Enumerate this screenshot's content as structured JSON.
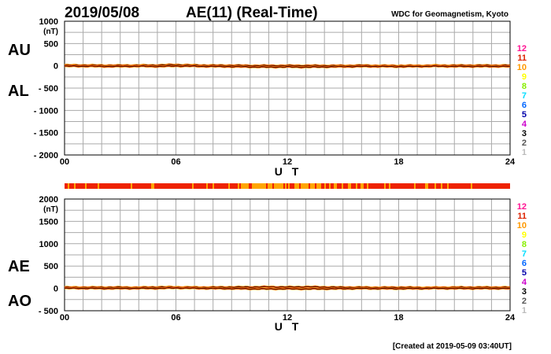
{
  "header": {
    "date": "2019/05/08",
    "title": "AE(11) (Real-Time)",
    "organization": "WDC for Geomagnetism, Kyoto"
  },
  "footer": {
    "created": "[Created at 2019-05-09 03:40UT]"
  },
  "station_legend": {
    "labels": [
      "12",
      "11",
      "10",
      "9",
      "8",
      "7",
      "6",
      "5",
      "4",
      "3",
      "2",
      "1"
    ],
    "colors": [
      "#ff1493",
      "#dd2200",
      "#ff9900",
      "#ffff00",
      "#88ee00",
      "#00ddff",
      "#0066ff",
      "#0000aa",
      "#cc00cc",
      "#000000",
      "#555555",
      "#bbbbbb"
    ]
  },
  "status_bar_colors": {
    "primary": "#ee2200",
    "secondary": "#ffa500"
  },
  "chart_data": [
    {
      "type": "line",
      "panel": "AU/AL",
      "panel_labels": [
        "AU",
        "AL"
      ],
      "unit": "(nT)",
      "xlabel": "U T",
      "xlim": [
        0,
        24
      ],
      "xticks": [
        "00",
        "06",
        "12",
        "18",
        "24"
      ],
      "ylim": [
        -2000,
        1000
      ],
      "yticks": [
        "1000",
        "500",
        "0",
        "- 500",
        "- 1000",
        "- 1500",
        "- 2000"
      ],
      "grid": true,
      "series": [
        {
          "name": "AU",
          "color": "#dd2200",
          "x": [
            0,
            1,
            2,
            3,
            4,
            5,
            6,
            7,
            8,
            9,
            10,
            11,
            12,
            13,
            14,
            15,
            16,
            17,
            18,
            19,
            20,
            21,
            22,
            23,
            24
          ],
          "values": [
            15,
            15,
            10,
            10,
            12,
            15,
            25,
            15,
            10,
            10,
            5,
            5,
            5,
            5,
            5,
            5,
            10,
            5,
            5,
            5,
            10,
            10,
            10,
            10,
            10
          ]
        },
        {
          "name": "AL",
          "color": "#dd2200",
          "x": [
            0,
            1,
            2,
            3,
            4,
            5,
            6,
            7,
            8,
            9,
            10,
            11,
            12,
            13,
            14,
            15,
            16,
            17,
            18,
            19,
            20,
            21,
            22,
            23,
            24
          ],
          "values": [
            -10,
            -10,
            -15,
            -15,
            -10,
            -15,
            -5,
            -10,
            -15,
            -20,
            -25,
            -30,
            -25,
            -30,
            -25,
            -20,
            -15,
            -15,
            -20,
            -15,
            -10,
            -15,
            -15,
            -15,
            -15
          ]
        }
      ]
    },
    {
      "type": "line",
      "panel": "AE/AO",
      "panel_labels": [
        "AE",
        "AO"
      ],
      "unit": "(nT)",
      "xlabel": "U T",
      "xlim": [
        0,
        24
      ],
      "xticks": [
        "00",
        "06",
        "12",
        "18",
        "24"
      ],
      "ylim": [
        -500,
        2000
      ],
      "yticks": [
        "2000",
        "1500",
        "1000",
        "500",
        "0",
        "- 500"
      ],
      "grid": true,
      "series": [
        {
          "name": "AE",
          "color": "#dd2200",
          "x": [
            0,
            1,
            2,
            3,
            4,
            5,
            6,
            7,
            8,
            9,
            10,
            11,
            12,
            13,
            14,
            15,
            16,
            17,
            18,
            19,
            20,
            21,
            22,
            23,
            24
          ],
          "values": [
            25,
            25,
            25,
            25,
            22,
            30,
            30,
            25,
            25,
            30,
            30,
            35,
            30,
            35,
            30,
            25,
            25,
            20,
            25,
            20,
            20,
            25,
            25,
            25,
            25
          ]
        },
        {
          "name": "AO",
          "color": "#dd2200",
          "x": [
            0,
            1,
            2,
            3,
            4,
            5,
            6,
            7,
            8,
            9,
            10,
            11,
            12,
            13,
            14,
            15,
            16,
            17,
            18,
            19,
            20,
            21,
            22,
            23,
            24
          ],
          "values": [
            2,
            2,
            -2,
            -2,
            1,
            0,
            10,
            2,
            -2,
            -5,
            -10,
            -12,
            -10,
            -12,
            -10,
            -7,
            -2,
            -5,
            -7,
            -5,
            0,
            -2,
            -2,
            -2,
            -2
          ]
        }
      ]
    }
  ]
}
